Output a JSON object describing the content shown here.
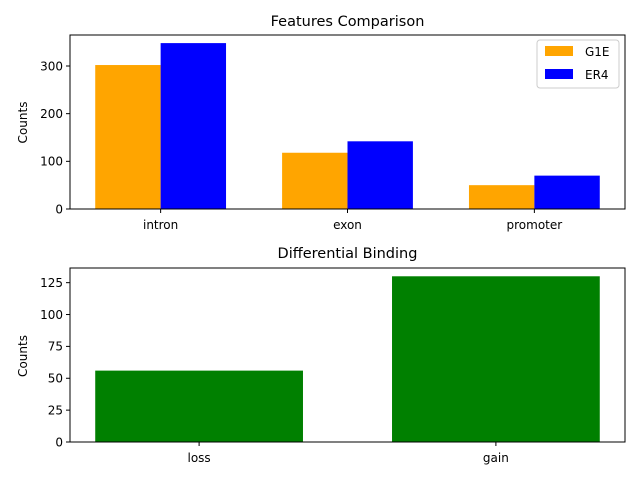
{
  "chart_data": [
    {
      "type": "bar",
      "title": "Features Comparison",
      "xlabel": "",
      "ylabel": "Counts",
      "categories": [
        "intron",
        "exon",
        "promoter"
      ],
      "series": [
        {
          "name": "G1E",
          "values": [
            302,
            118,
            50
          ],
          "color": "#ffa500"
        },
        {
          "name": "ER4",
          "values": [
            348,
            142,
            70
          ],
          "color": "#0000ff"
        }
      ],
      "ylim": [
        0,
        365
      ],
      "yticks": [
        0,
        100,
        200,
        300
      ],
      "legend": "top-right",
      "grid": false
    },
    {
      "type": "bar",
      "title": "Differential Binding",
      "xlabel": "",
      "ylabel": "Counts",
      "categories": [
        "loss",
        "gain"
      ],
      "series": [
        {
          "values": [
            56,
            130
          ],
          "color": "#008000"
        }
      ],
      "ylim": [
        0,
        136.5
      ],
      "yticks": [
        0,
        25,
        50,
        75,
        100,
        125
      ],
      "grid": false
    }
  ]
}
